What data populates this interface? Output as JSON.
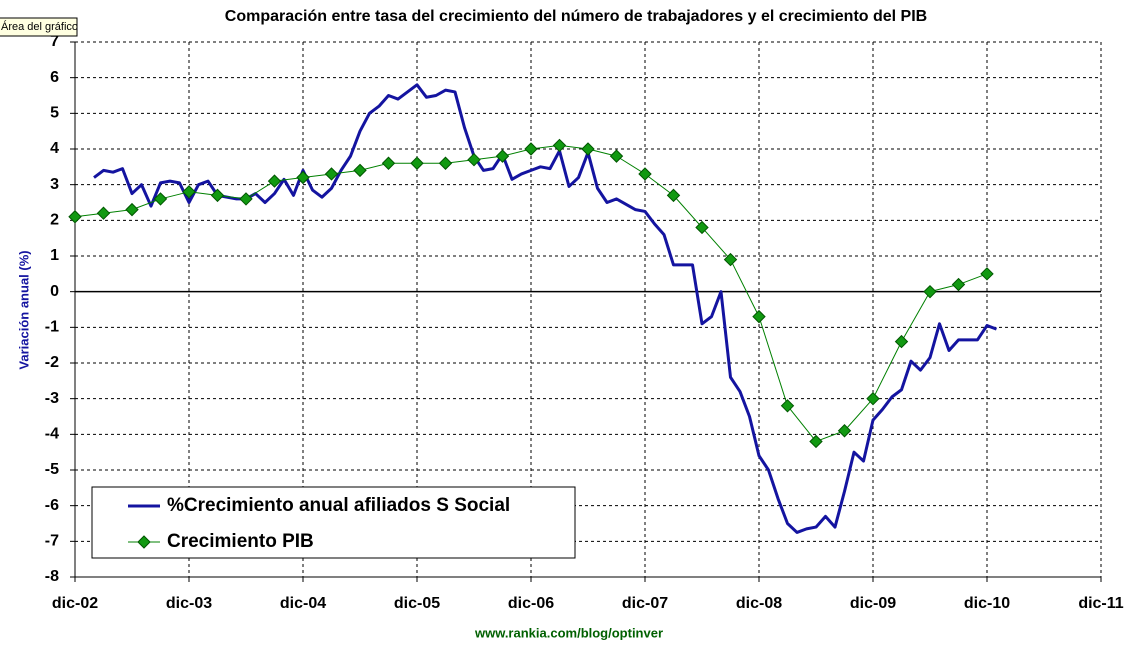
{
  "tooltip": "Área del gráfico",
  "chart_data": {
    "type": "line",
    "title": "Comparación entre tasa del crecimiento del número de trabajadores y el crecimiento del PIB",
    "y_label": "Variación anual (%)",
    "source": "www.rankia.com/blog/optinver",
    "xlim": [
      "2002-12",
      "2011-12"
    ],
    "xticks": [
      {
        "value": "2002-12",
        "label": "dic-02"
      },
      {
        "value": "2003-12",
        "label": "dic-03"
      },
      {
        "value": "2004-12",
        "label": "dic-04"
      },
      {
        "value": "2005-12",
        "label": "dic-05"
      },
      {
        "value": "2006-12",
        "label": "dic-06"
      },
      {
        "value": "2007-12",
        "label": "dic-07"
      },
      {
        "value": "2008-12",
        "label": "dic-08"
      },
      {
        "value": "2009-12",
        "label": "dic-09"
      },
      {
        "value": "2010-12",
        "label": "dic-10"
      },
      {
        "value": "2011-12",
        "label": "dic-11"
      }
    ],
    "ylim": [
      -8,
      7
    ],
    "yticks": [
      7,
      6,
      5,
      4,
      3,
      2,
      1,
      0,
      -1,
      -2,
      -3,
      -4,
      -5,
      -6,
      -7,
      -8
    ],
    "grid": true,
    "legend": "bottom-left",
    "series": [
      {
        "name": "%Crecimiento anual afiliados S Social",
        "color": "#1414a0",
        "marker": "none",
        "x": [
          "2003-02",
          "2003-03",
          "2003-04",
          "2003-05",
          "2003-06",
          "2003-07",
          "2003-08",
          "2003-09",
          "2003-10",
          "2003-11",
          "2003-12",
          "2004-01",
          "2004-02",
          "2004-03",
          "2004-04",
          "2004-05",
          "2004-06",
          "2004-07",
          "2004-08",
          "2004-09",
          "2004-10",
          "2004-11",
          "2004-12",
          "2005-01",
          "2005-02",
          "2005-03",
          "2005-04",
          "2005-05",
          "2005-06",
          "2005-07",
          "2005-08",
          "2005-09",
          "2005-10",
          "2005-11",
          "2005-12",
          "2006-01",
          "2006-02",
          "2006-03",
          "2006-04",
          "2006-05",
          "2006-06",
          "2006-07",
          "2006-08",
          "2006-09",
          "2006-10",
          "2006-11",
          "2006-12",
          "2007-01",
          "2007-02",
          "2007-03",
          "2007-04",
          "2007-05",
          "2007-06",
          "2007-07",
          "2007-08",
          "2007-09",
          "2007-10",
          "2007-11",
          "2007-12",
          "2008-01",
          "2008-02",
          "2008-03",
          "2008-04",
          "2008-05",
          "2008-06",
          "2008-07",
          "2008-08",
          "2008-09",
          "2008-10",
          "2008-11",
          "2008-12",
          "2009-01",
          "2009-02",
          "2009-03",
          "2009-04",
          "2009-05",
          "2009-06",
          "2009-07",
          "2009-08",
          "2009-09",
          "2009-10",
          "2009-11",
          "2009-12",
          "2010-01",
          "2010-02",
          "2010-03",
          "2010-04",
          "2010-05",
          "2010-06",
          "2010-07",
          "2010-08",
          "2010-09",
          "2010-10",
          "2010-11",
          "2010-12",
          "2011-01"
        ],
        "values": [
          3.2,
          3.4,
          3.35,
          3.45,
          2.75,
          3.0,
          2.4,
          3.05,
          3.1,
          3.05,
          2.5,
          3.0,
          3.1,
          2.7,
          2.65,
          2.6,
          2.6,
          2.75,
          2.5,
          2.75,
          3.15,
          2.7,
          3.4,
          2.85,
          2.65,
          2.9,
          3.4,
          3.8,
          4.5,
          5.0,
          5.2,
          5.5,
          5.4,
          5.6,
          5.8,
          5.45,
          5.5,
          5.65,
          5.6,
          4.6,
          3.8,
          3.4,
          3.45,
          3.85,
          3.15,
          3.3,
          3.4,
          3.5,
          3.45,
          3.95,
          2.95,
          3.2,
          3.9,
          2.9,
          2.5,
          2.6,
          2.45,
          2.3,
          2.25,
          1.9,
          1.6,
          0.75,
          0.75,
          0.75,
          -0.9,
          -0.7,
          0.0,
          -2.4,
          -2.8,
          -3.5,
          -4.6,
          -5.0,
          -5.8,
          -6.5,
          -6.75,
          -6.65,
          -6.6,
          -6.3,
          -6.6,
          -5.6,
          -4.5,
          -4.75,
          -3.6,
          -3.3,
          -2.95,
          -2.75,
          -1.95,
          -2.2,
          -1.85,
          -0.9,
          -1.65,
          -1.35,
          -1.35,
          -1.35,
          -0.95,
          -1.05
        ]
      },
      {
        "name": "Crecimiento PIB",
        "color": "#008000",
        "marker": "diamond",
        "x": [
          "2002-12",
          "2003-03",
          "2003-06",
          "2003-09",
          "2003-12",
          "2004-03",
          "2004-06",
          "2004-09",
          "2004-12",
          "2005-03",
          "2005-06",
          "2005-09",
          "2005-12",
          "2006-03",
          "2006-06",
          "2006-09",
          "2006-12",
          "2007-03",
          "2007-06",
          "2007-09",
          "2007-12",
          "2008-03",
          "2008-06",
          "2008-09",
          "2008-12",
          "2009-03",
          "2009-06",
          "2009-09",
          "2009-12",
          "2010-03",
          "2010-06",
          "2010-09",
          "2010-12"
        ],
        "values": [
          2.1,
          2.2,
          2.3,
          2.6,
          2.8,
          2.7,
          2.6,
          3.1,
          3.2,
          3.3,
          3.4,
          3.6,
          3.6,
          3.6,
          3.7,
          3.8,
          4.0,
          4.1,
          4.0,
          3.8,
          3.3,
          2.7,
          1.8,
          0.9,
          -0.7,
          -3.2,
          -4.2,
          -3.9,
          -3.0,
          -1.4,
          0.0,
          0.2,
          0.5
        ]
      }
    ]
  }
}
